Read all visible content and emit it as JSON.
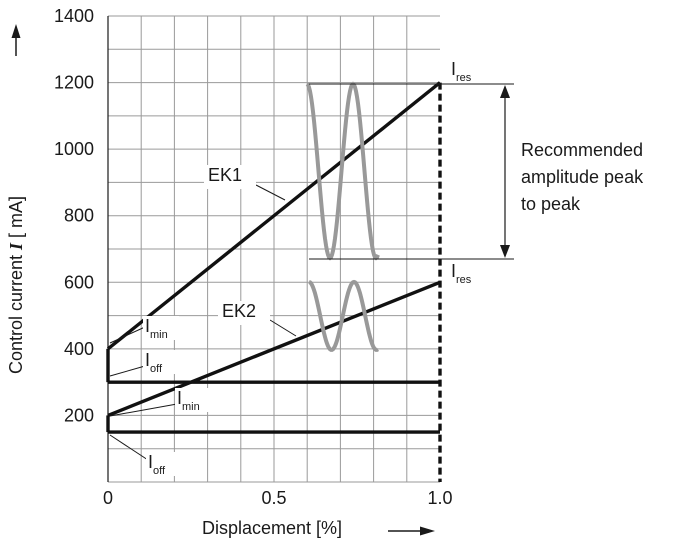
{
  "chart_data": {
    "type": "line",
    "xlabel": "Displacement [%]",
    "ylabel_parts": [
      "Control current ",
      "I",
      " [ mA]"
    ],
    "xlim": [
      0,
      1.0
    ],
    "ylim": [
      0,
      1400
    ],
    "x_ticks": [
      {
        "value": 0,
        "label": "0"
      },
      {
        "value": 0.5,
        "label": "0.5"
      },
      {
        "value": 1.0,
        "label": "1.0"
      }
    ],
    "y_ticks": [
      {
        "value": 200,
        "label": "200"
      },
      {
        "value": 400,
        "label": "400"
      },
      {
        "value": 600,
        "label": "600"
      },
      {
        "value": 800,
        "label": "800"
      },
      {
        "value": 1000,
        "label": "1000"
      },
      {
        "value": 1200,
        "label": "1200"
      },
      {
        "value": 1400,
        "label": "1400"
      }
    ],
    "grid": true,
    "series": [
      {
        "name": "EK1",
        "x": [
          0,
          1.0
        ],
        "y": [
          400,
          1200
        ]
      },
      {
        "name": "EK2",
        "x": [
          0,
          1.0
        ],
        "y": [
          200,
          600
        ]
      }
    ],
    "offset_lines": [
      {
        "x": [
          0,
          1.0
        ],
        "y": [
          300,
          300
        ]
      },
      {
        "x": [
          0,
          1.0
        ],
        "y": [
          150,
          150
        ]
      }
    ],
    "annotations": {
      "i_min_upper": {
        "main": "I",
        "sub": "min"
      },
      "i_off_upper": {
        "main": "I",
        "sub": "off"
      },
      "i_min_lower": {
        "main": "I",
        "sub": "min"
      },
      "i_off_lower": {
        "main": "I",
        "sub": "off"
      },
      "i_res_upper": {
        "main": "I",
        "sub": "res"
      },
      "i_res_lower": {
        "main": "I",
        "sub": "res"
      },
      "recommended": [
        "Recommended",
        "amplitude peak",
        "to peak"
      ]
    }
  }
}
